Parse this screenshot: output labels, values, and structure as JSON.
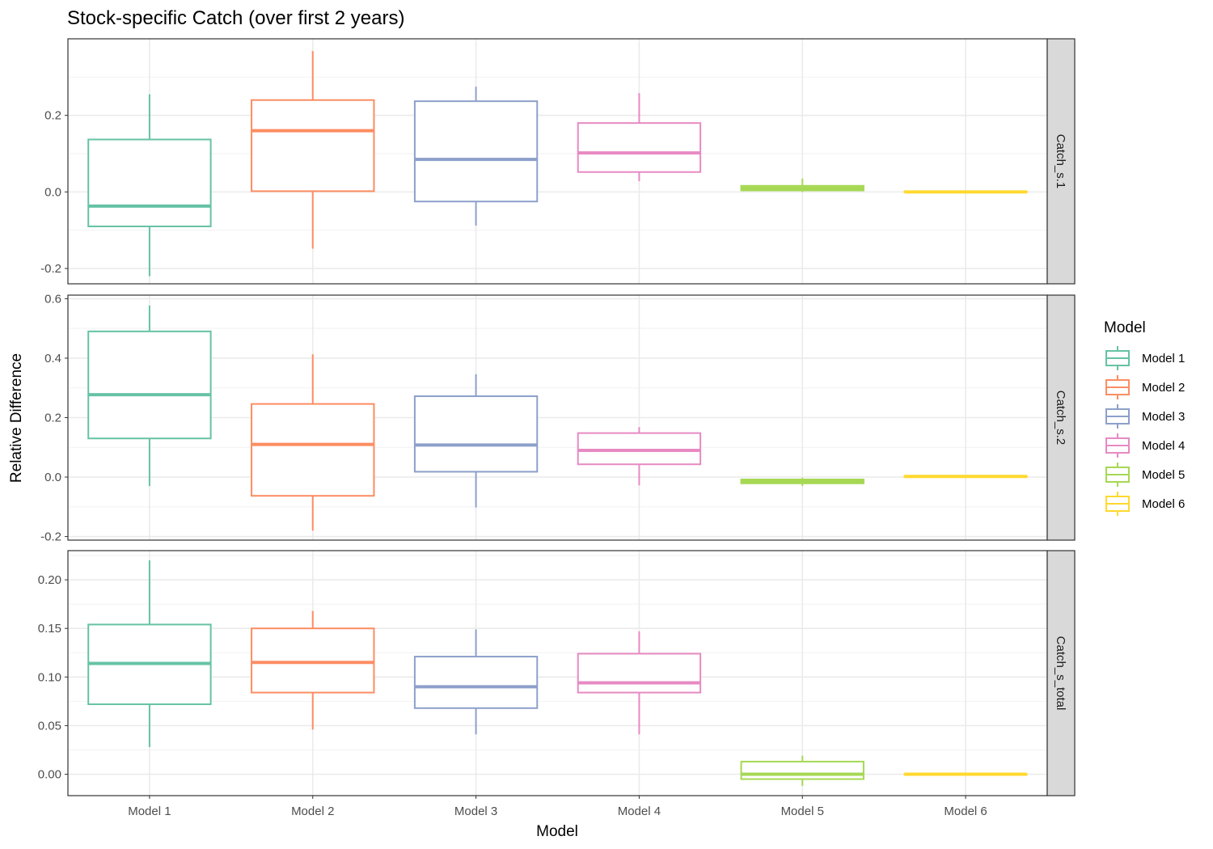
{
  "chart_data": {
    "type": "boxplot",
    "title": "Stock-specific Catch (over first 2 years)",
    "xlabel": "Model",
    "ylabel": "Relative Difference",
    "categories": [
      "Model 1",
      "Model 2",
      "Model 3",
      "Model 4",
      "Model 5",
      "Model 6"
    ],
    "colors": [
      "#66C2A5",
      "#FC8D62",
      "#8DA0CB",
      "#E78AC3",
      "#A6D854",
      "#FFD92F"
    ],
    "legend": {
      "title": "Model",
      "position": "right",
      "entries": [
        "Model 1",
        "Model 2",
        "Model 3",
        "Model 4",
        "Model 5",
        "Model 6"
      ]
    },
    "facet_scales": "free_y",
    "grid": true,
    "panels": [
      {
        "label": "Catch_s.1",
        "ylim": [
          -0.24,
          0.4
        ],
        "yticks": [
          -0.2,
          0.0,
          0.2
        ],
        "yticklabels": [
          "-0.2",
          "0.0",
          "0.2"
        ],
        "boxes": [
          {
            "model": "Model 1",
            "min": -0.22,
            "q1": -0.09,
            "median": -0.037,
            "q3": 0.137,
            "max": 0.255
          },
          {
            "model": "Model 2",
            "min": -0.148,
            "q1": 0.002,
            "median": 0.16,
            "q3": 0.24,
            "max": 0.368
          },
          {
            "model": "Model 3",
            "min": -0.088,
            "q1": -0.025,
            "median": 0.085,
            "q3": 0.237,
            "max": 0.275
          },
          {
            "model": "Model 4",
            "min": 0.028,
            "q1": 0.052,
            "median": 0.102,
            "q3": 0.18,
            "max": 0.258
          },
          {
            "model": "Model 5",
            "min": 0.0,
            "q1": 0.004,
            "median": 0.01,
            "q3": 0.016,
            "max": 0.035
          },
          {
            "model": "Model 6",
            "min": 0.0,
            "q1": 0.0,
            "median": 0.0,
            "q3": 0.001,
            "max": 0.001
          }
        ]
      },
      {
        "label": "Catch_s.2",
        "ylim": [
          -0.212,
          0.612
        ],
        "yticks": [
          -0.2,
          0.0,
          0.2,
          0.4,
          0.6
        ],
        "yticklabels": [
          "-0.2",
          "0.0",
          "0.2",
          "0.4",
          "0.6"
        ],
        "boxes": [
          {
            "model": "Model 1",
            "min": -0.03,
            "q1": 0.13,
            "median": 0.277,
            "q3": 0.49,
            "max": 0.577
          },
          {
            "model": "Model 2",
            "min": -0.18,
            "q1": -0.063,
            "median": 0.11,
            "q3": 0.246,
            "max": 0.413
          },
          {
            "model": "Model 3",
            "min": -0.102,
            "q1": 0.018,
            "median": 0.108,
            "q3": 0.272,
            "max": 0.346
          },
          {
            "model": "Model 4",
            "min": -0.028,
            "q1": 0.043,
            "median": 0.09,
            "q3": 0.148,
            "max": 0.168
          },
          {
            "model": "Model 5",
            "min": -0.03,
            "q1": -0.021,
            "median": -0.015,
            "q3": -0.008,
            "max": -0.002
          },
          {
            "model": "Model 6",
            "min": 0.0,
            "q1": 0.001,
            "median": 0.002,
            "q3": 0.003,
            "max": 0.004
          }
        ]
      },
      {
        "label": "Catch_s_total",
        "ylim": [
          -0.022,
          0.23
        ],
        "yticks": [
          0.0,
          0.05,
          0.1,
          0.15,
          0.2
        ],
        "yticklabels": [
          "0.00",
          "0.05",
          "0.10",
          "0.15",
          "0.20"
        ],
        "boxes": [
          {
            "model": "Model 1",
            "min": 0.028,
            "q1": 0.072,
            "median": 0.114,
            "q3": 0.154,
            "max": 0.22
          },
          {
            "model": "Model 2",
            "min": 0.046,
            "q1": 0.084,
            "median": 0.115,
            "q3": 0.15,
            "max": 0.168
          },
          {
            "model": "Model 3",
            "min": 0.041,
            "q1": 0.068,
            "median": 0.09,
            "q3": 0.121,
            "max": 0.149
          },
          {
            "model": "Model 4",
            "min": 0.041,
            "q1": 0.084,
            "median": 0.094,
            "q3": 0.124,
            "max": 0.147
          },
          {
            "model": "Model 5",
            "min": -0.012,
            "q1": -0.005,
            "median": 0.0,
            "q3": 0.013,
            "max": 0.019
          },
          {
            "model": "Model 6",
            "min": 0.0,
            "q1": 0.0,
            "median": 0.0,
            "q3": 0.0,
            "max": 0.0
          }
        ]
      }
    ]
  }
}
